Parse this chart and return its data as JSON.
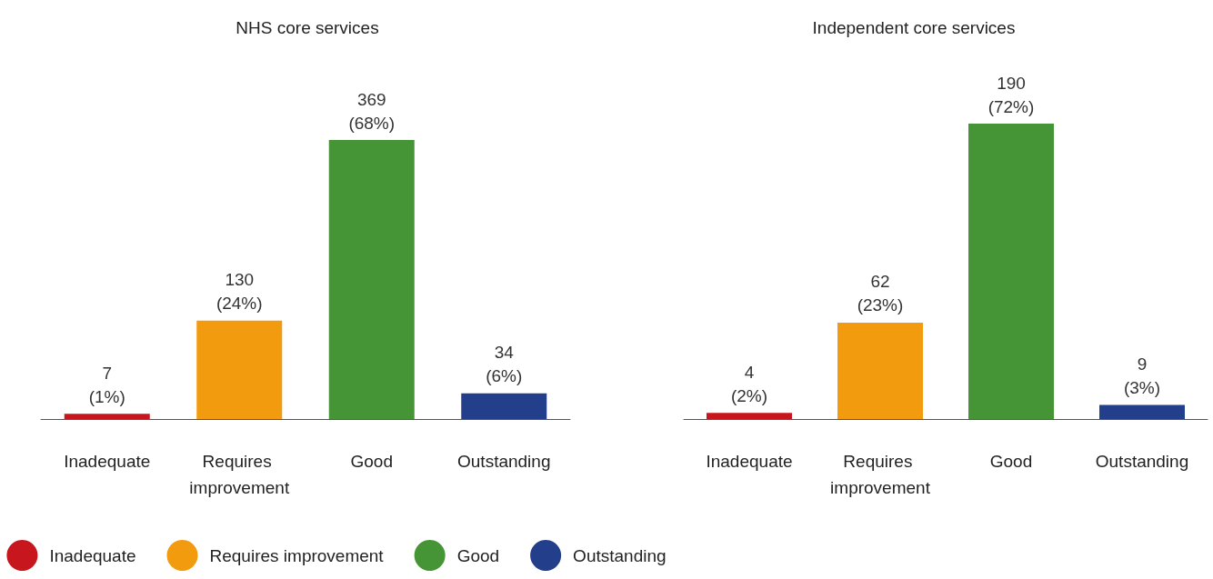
{
  "chart_data": [
    {
      "type": "bar",
      "title": "NHS core services",
      "categories": [
        "Inadequate",
        "Requires improvement",
        "Good",
        "Outstanding"
      ],
      "legend": "bottom",
      "series": [
        {
          "name": "Inadequate",
          "color": "#c8161e",
          "values": [
            7,
            null,
            null,
            null
          ],
          "value_labels": [
            "7 (1%)",
            null,
            null,
            null
          ]
        },
        {
          "name": "Requires improvement",
          "color": "#f39b0f",
          "values": [
            null,
            130,
            null,
            null
          ],
          "value_labels": [
            null,
            "130 (24%)",
            null,
            null
          ]
        },
        {
          "name": "Good",
          "color": "#459536",
          "values": [
            null,
            null,
            369,
            null
          ],
          "value_labels": [
            null,
            null,
            "369 (68%)",
            null
          ]
        },
        {
          "name": "Outstanding",
          "color": "#233e8b",
          "values": [
            null,
            null,
            null,
            34
          ],
          "value_labels": [
            null,
            null,
            null,
            "34 (6%)"
          ]
        }
      ]
    },
    {
      "type": "bar",
      "title": "Independent core services",
      "categories": [
        "Inadequate",
        "Requires improvement",
        "Good",
        "Outstanding"
      ],
      "series": [
        {
          "color": "#c8161e",
          "values": [
            4,
            null,
            null,
            null
          ],
          "value_labels": [
            "4 (2%)",
            null,
            null,
            null
          ]
        },
        {
          "color": "#f39b0f",
          "values": [
            null,
            62,
            null,
            null
          ],
          "value_labels": [
            null,
            "62 (23%)",
            null,
            null
          ]
        },
        {
          "color": "#459536",
          "values": [
            null,
            null,
            190,
            null
          ],
          "value_labels": [
            null,
            null,
            "190 (72%)",
            null
          ]
        },
        {
          "color": "#233e8b",
          "values": [
            null,
            null,
            null,
            9
          ],
          "value_labels": [
            null,
            null,
            null,
            "9 (3%)"
          ]
        }
      ]
    }
  ]
}
